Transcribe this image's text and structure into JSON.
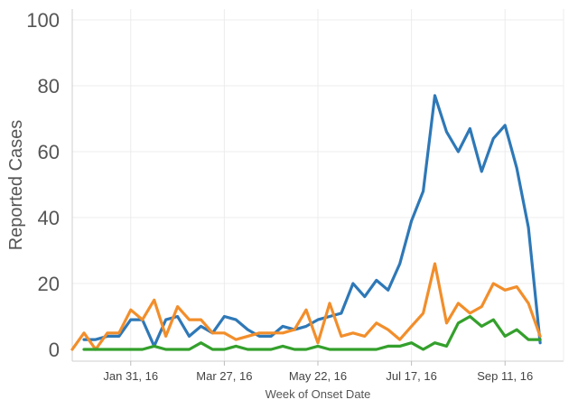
{
  "chart_data": {
    "type": "line",
    "xlabel": "Week of Onset Date",
    "ylabel": "Reported Cases",
    "ylim": [
      0,
      100
    ],
    "y_ticks": [
      "0",
      "20",
      "40",
      "60",
      "80",
      "100"
    ],
    "x_ticks": [
      {
        "label": "Jan 31, 16",
        "week": 4
      },
      {
        "label": "Mar 27, 16",
        "week": 12
      },
      {
        "label": "May 22, 16",
        "week": 20
      },
      {
        "label": "Jul 17, 16",
        "week": 28
      },
      {
        "label": "Sep 11, 16",
        "week": 36
      }
    ],
    "x_range": [
      -1,
      41
    ],
    "grid": true,
    "series": [
      {
        "color": "#2e78b7",
        "points": [
          [
            0,
            3
          ],
          [
            1,
            3
          ],
          [
            2,
            4
          ],
          [
            3,
            4
          ],
          [
            4,
            9
          ],
          [
            5,
            9
          ],
          [
            6,
            1
          ],
          [
            7,
            9
          ],
          [
            8,
            10
          ],
          [
            9,
            4
          ],
          [
            10,
            7
          ],
          [
            11,
            5
          ],
          [
            12,
            10
          ],
          [
            13,
            9
          ],
          [
            14,
            6
          ],
          [
            15,
            4
          ],
          [
            16,
            4
          ],
          [
            17,
            7
          ],
          [
            18,
            6
          ],
          [
            19,
            7
          ],
          [
            20,
            9
          ],
          [
            21,
            10
          ],
          [
            22,
            11
          ],
          [
            23,
            20
          ],
          [
            24,
            16
          ],
          [
            25,
            21
          ],
          [
            26,
            18
          ],
          [
            27,
            26
          ],
          [
            28,
            39
          ],
          [
            29,
            48
          ],
          [
            30,
            77
          ],
          [
            31,
            66
          ],
          [
            32,
            60
          ],
          [
            33,
            67
          ],
          [
            34,
            54
          ],
          [
            35,
            64
          ],
          [
            36,
            68
          ],
          [
            37,
            55
          ],
          [
            38,
            37
          ],
          [
            39,
            2
          ]
        ]
      },
      {
        "color": "#f28e2b",
        "points": [
          [
            -1,
            0
          ],
          [
            0,
            5
          ],
          [
            1,
            0
          ],
          [
            2,
            5
          ],
          [
            3,
            5
          ],
          [
            4,
            12
          ],
          [
            5,
            9
          ],
          [
            6,
            15
          ],
          [
            7,
            4
          ],
          [
            8,
            13
          ],
          [
            9,
            9
          ],
          [
            10,
            9
          ],
          [
            11,
            5
          ],
          [
            12,
            5
          ],
          [
            13,
            3
          ],
          [
            14,
            4
          ],
          [
            15,
            5
          ],
          [
            16,
            5
          ],
          [
            17,
            5
          ],
          [
            18,
            6
          ],
          [
            19,
            12
          ],
          [
            20,
            2
          ],
          [
            21,
            14
          ],
          [
            22,
            4
          ],
          [
            23,
            5
          ],
          [
            24,
            4
          ],
          [
            25,
            8
          ],
          [
            26,
            6
          ],
          [
            27,
            3
          ],
          [
            28,
            7
          ],
          [
            29,
            11
          ],
          [
            30,
            26
          ],
          [
            31,
            8
          ],
          [
            32,
            14
          ],
          [
            33,
            11
          ],
          [
            34,
            13
          ],
          [
            35,
            20
          ],
          [
            36,
            18
          ],
          [
            37,
            19
          ],
          [
            38,
            14
          ],
          [
            39,
            4
          ]
        ]
      },
      {
        "color": "#34a02c",
        "points": [
          [
            0,
            0
          ],
          [
            1,
            0
          ],
          [
            2,
            0
          ],
          [
            3,
            0
          ],
          [
            4,
            0
          ],
          [
            5,
            0
          ],
          [
            6,
            1
          ],
          [
            7,
            0
          ],
          [
            8,
            0
          ],
          [
            9,
            0
          ],
          [
            10,
            2
          ],
          [
            11,
            0
          ],
          [
            12,
            0
          ],
          [
            13,
            1
          ],
          [
            14,
            0
          ],
          [
            15,
            0
          ],
          [
            16,
            0
          ],
          [
            17,
            1
          ],
          [
            18,
            0
          ],
          [
            19,
            0
          ],
          [
            20,
            1
          ],
          [
            21,
            0
          ],
          [
            22,
            0
          ],
          [
            23,
            0
          ],
          [
            24,
            0
          ],
          [
            25,
            0
          ],
          [
            26,
            1
          ],
          [
            27,
            1
          ],
          [
            28,
            2
          ],
          [
            29,
            0
          ],
          [
            30,
            2
          ],
          [
            31,
            1
          ],
          [
            32,
            8
          ],
          [
            33,
            10
          ],
          [
            34,
            7
          ],
          [
            35,
            9
          ],
          [
            36,
            4
          ],
          [
            37,
            6
          ],
          [
            38,
            3
          ],
          [
            39,
            3
          ]
        ]
      }
    ]
  }
}
